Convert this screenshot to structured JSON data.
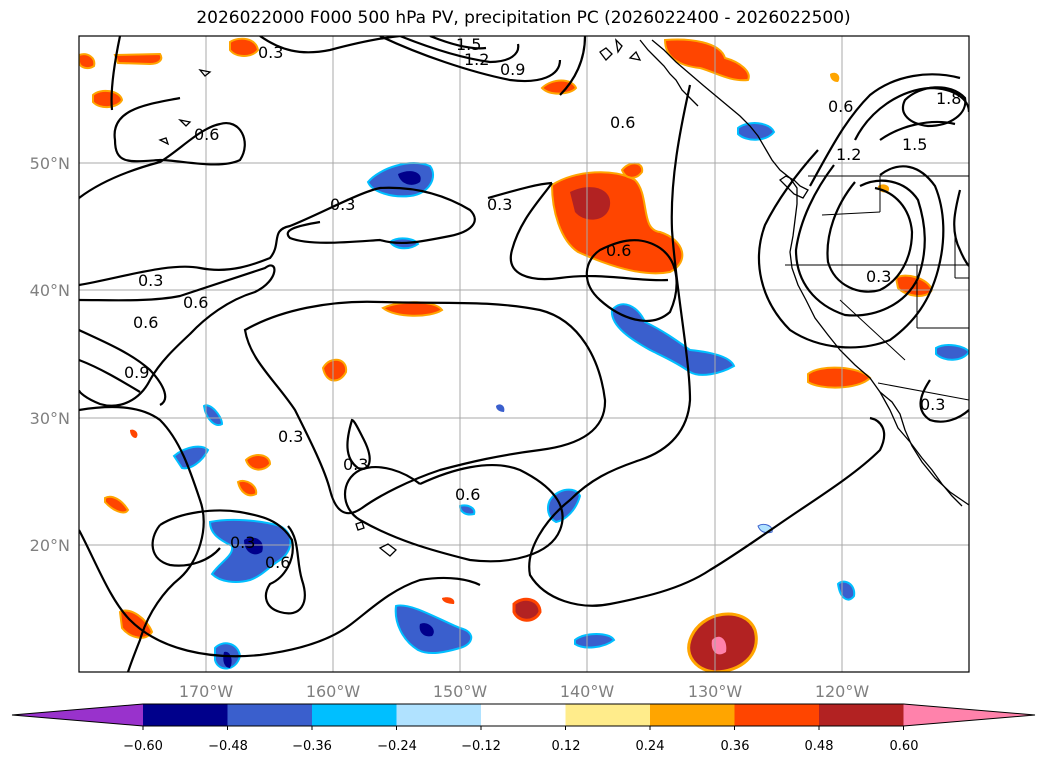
{
  "title": "2026022000 F000 500 hPa PV, precipitation PC (2026022400 - 2026022500)",
  "chart_data": {
    "type": "contour-map",
    "projection": "PlateCarree",
    "lon_range": [
      -180,
      -110
    ],
    "lat_range": [
      10,
      60
    ],
    "xticks": [
      -170,
      -160,
      -150,
      -140,
      -130,
      -120
    ],
    "xtick_labels": [
      "170°W",
      "160°W",
      "150°W",
      "140°W",
      "130°W",
      "120°W"
    ],
    "yticks": [
      20,
      30,
      40,
      50
    ],
    "ytick_labels": [
      "20°N",
      "30°N",
      "40°N",
      "50°N"
    ],
    "grid": true,
    "pv_contour_labels": [
      "0.3",
      "0.6",
      "0.9",
      "1.2",
      "1.5",
      "1.8"
    ],
    "colorbar": {
      "orientation": "horizontal",
      "extend": "both",
      "colors": [
        "#9932cc",
        "#00008b",
        "#3a5fcd",
        "#00bfff",
        "#b0e2ff",
        "#ffffff",
        "#ffec8b",
        "#ffa500",
        "#ff4500",
        "#b22222",
        "#ff82ab"
      ],
      "tick_labels": [
        "−0.60",
        "−0.48",
        "−0.36",
        "−0.24",
        "−0.12",
        "0.12",
        "0.24",
        "0.36",
        "0.48",
        "0.60"
      ]
    }
  }
}
